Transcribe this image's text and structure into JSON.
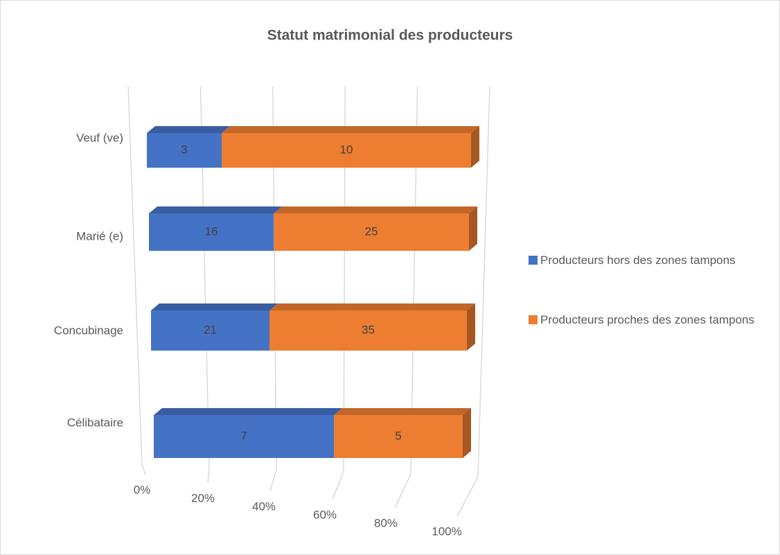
{
  "chart_data": {
    "type": "bar",
    "orientation": "horizontal",
    "stacked": "percent",
    "title": "Statut matrimonial des producteurs",
    "categories": [
      "Veuf (ve)",
      "Marié (e)",
      "Concubinage",
      "Célibataire"
    ],
    "series": [
      {
        "name": "Producteurs hors des zones tampons",
        "color": "#4472c4",
        "values": [
          3,
          16,
          21,
          7
        ]
      },
      {
        "name": "Producteurs proches des zones tampons",
        "color": "#ed7d31",
        "values": [
          10,
          25,
          35,
          5
        ]
      }
    ],
    "xlim": [
      0,
      100
    ],
    "xticks": [
      {
        "value": 0,
        "label": "0%"
      },
      {
        "value": 20,
        "label": "20%"
      },
      {
        "value": 40,
        "label": "40%"
      },
      {
        "value": 60,
        "label": "60%"
      },
      {
        "value": 80,
        "label": "80%"
      },
      {
        "value": 100,
        "label": "100%"
      }
    ],
    "grid": true,
    "legend": "right"
  }
}
